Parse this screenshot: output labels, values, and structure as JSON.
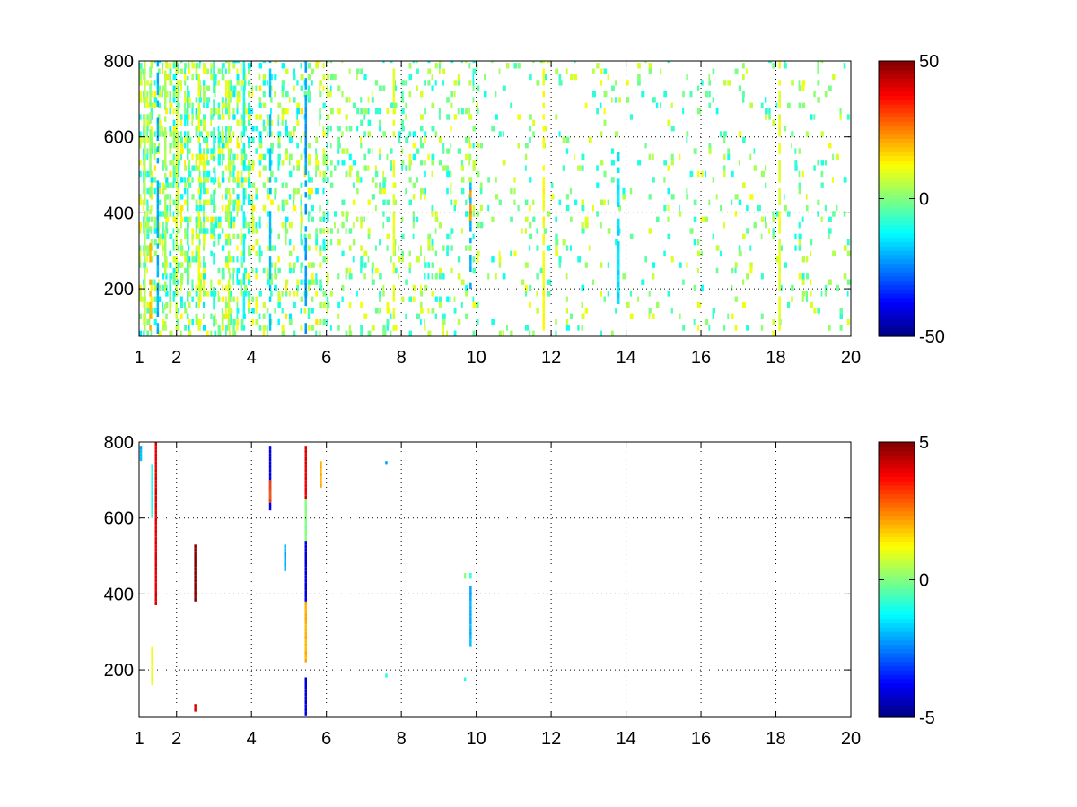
{
  "chart_data": [
    {
      "type": "heatmap",
      "colormap": "jet",
      "xlim": [
        1,
        20
      ],
      "ylim": [
        75,
        800
      ],
      "xticks": [
        1,
        2,
        4,
        6,
        8,
        10,
        12,
        14,
        16,
        18,
        20
      ],
      "yticks": [
        200,
        400,
        600,
        800
      ],
      "clim": [
        -50,
        50
      ],
      "colorbar_ticks": [
        -50,
        0,
        50
      ],
      "grid": true,
      "cell_height": 15,
      "columns": [
        {
          "x": 1.15,
          "cells": [
            [
              90,
              800,
              5
            ]
          ]
        },
        {
          "x": 1.3,
          "cells": [
            [
              90,
              320,
              20
            ],
            [
              350,
              800,
              2
            ]
          ]
        },
        {
          "x": 1.5,
          "cells": [
            [
              80,
              800,
              -20
            ]
          ]
        },
        {
          "x": 1.7,
          "cells": [
            [
              100,
              780,
              4
            ]
          ]
        },
        {
          "x": 2.0,
          "cells": [
            [
              90,
              800,
              8
            ]
          ]
        },
        {
          "x": 2.3,
          "cells": [
            [
              120,
              760,
              -6
            ]
          ]
        },
        {
          "x": 2.6,
          "cells": [
            [
              90,
              800,
              10
            ]
          ]
        },
        {
          "x": 3.0,
          "cells": [
            [
              100,
              800,
              -8
            ]
          ]
        },
        {
          "x": 3.4,
          "cells": [
            [
              90,
              800,
              6
            ]
          ]
        },
        {
          "x": 3.8,
          "cells": [
            [
              90,
              800,
              -12
            ]
          ]
        },
        {
          "x": 4.5,
          "cells": [
            [
              90,
              800,
              -18
            ]
          ]
        },
        {
          "x": 5.45,
          "cells": [
            [
              80,
              800,
              -22
            ]
          ]
        },
        {
          "x": 7.8,
          "cells": [
            [
              90,
              800,
              10
            ]
          ]
        },
        {
          "x": 9.85,
          "cells": [
            [
              200,
              480,
              -20
            ],
            [
              380,
              460,
              22
            ]
          ]
        },
        {
          "x": 11.8,
          "cells": [
            [
              90,
              800,
              12
            ]
          ]
        },
        {
          "x": 13.8,
          "cells": [
            [
              160,
              560,
              -15
            ]
          ]
        },
        {
          "x": 18.1,
          "cells": [
            [
              90,
              800,
              10
            ]
          ]
        }
      ],
      "scatter_density": [
        {
          "x_range": [
            1,
            4
          ],
          "density": 0.55,
          "value_range": [
            -15,
            15
          ]
        },
        {
          "x_range": [
            4,
            6
          ],
          "density": 0.35,
          "value_range": [
            -15,
            15
          ]
        },
        {
          "x_range": [
            6,
            10
          ],
          "density": 0.22,
          "value_range": [
            -12,
            12
          ]
        },
        {
          "x_range": [
            10,
            20
          ],
          "density": 0.1,
          "value_range": [
            -12,
            12
          ]
        }
      ]
    },
    {
      "type": "heatmap",
      "colormap": "jet",
      "xlim": [
        1,
        20
      ],
      "ylim": [
        75,
        800
      ],
      "xticks": [
        1,
        2,
        4,
        6,
        8,
        10,
        12,
        14,
        16,
        18,
        20
      ],
      "yticks": [
        200,
        400,
        600,
        800
      ],
      "clim": [
        -5,
        5
      ],
      "colorbar_ticks": [
        -5,
        0,
        5
      ],
      "grid": true,
      "cell_height": 10,
      "columns": [
        {
          "x": 1.05,
          "cells": [
            [
              750,
              790,
              -2
            ]
          ]
        },
        {
          "x": 1.35,
          "cells": [
            [
              160,
              260,
              1
            ],
            [
              600,
              740,
              -1
            ]
          ]
        },
        {
          "x": 1.45,
          "cells": [
            [
              370,
              800,
              4
            ]
          ]
        },
        {
          "x": 2.5,
          "cells": [
            [
              380,
              530,
              5
            ],
            [
              90,
              110,
              4
            ]
          ]
        },
        {
          "x": 4.5,
          "cells": [
            [
              620,
              790,
              -4
            ],
            [
              640,
              700,
              3
            ]
          ]
        },
        {
          "x": 4.9,
          "cells": [
            [
              460,
              530,
              -2
            ]
          ]
        },
        {
          "x": 5.45,
          "cells": [
            [
              80,
              180,
              -4
            ],
            [
              220,
              380,
              2
            ],
            [
              380,
              540,
              -4
            ],
            [
              540,
              650,
              0
            ],
            [
              650,
              790,
              4
            ]
          ]
        },
        {
          "x": 5.85,
          "cells": [
            [
              680,
              750,
              2
            ]
          ]
        },
        {
          "x": 7.6,
          "cells": [
            [
              180,
              190,
              -1
            ],
            [
              740,
              750,
              -2
            ]
          ]
        },
        {
          "x": 9.7,
          "cells": [
            [
              170,
              180,
              -1
            ],
            [
              440,
              455,
              0
            ]
          ]
        },
        {
          "x": 9.85,
          "cells": [
            [
              260,
              420,
              -2
            ],
            [
              440,
              455,
              -1
            ]
          ]
        }
      ]
    }
  ]
}
